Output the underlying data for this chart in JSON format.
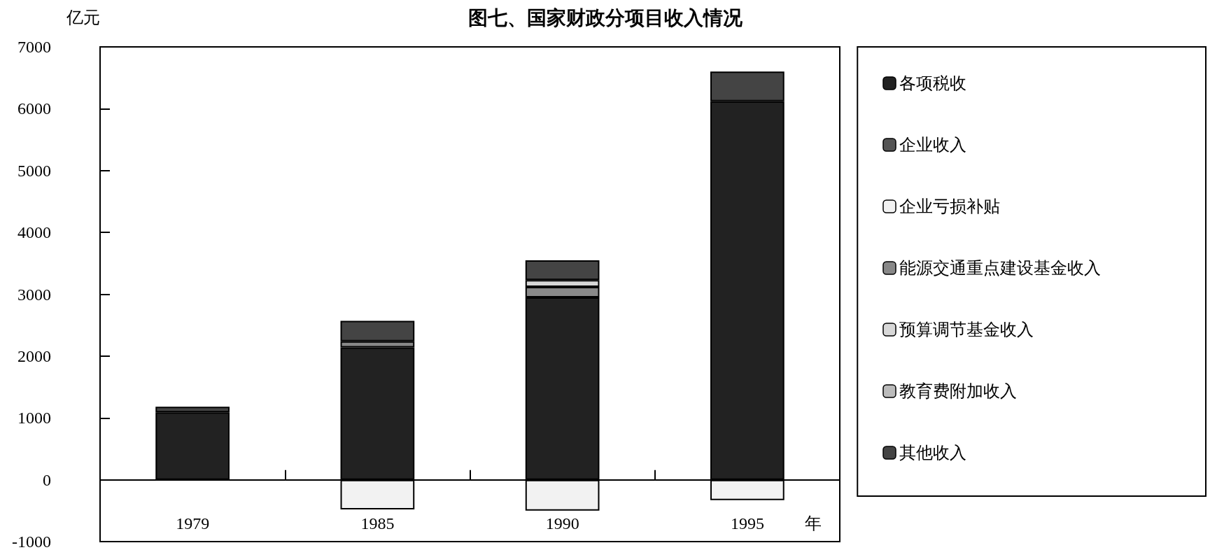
{
  "chart_data": {
    "type": "bar",
    "title": "图七、国家财政分项目收入情况",
    "ylabel": "亿元",
    "xlabel": "年",
    "categories": [
      "1979",
      "1985",
      "1990",
      "1995"
    ],
    "stacked": true,
    "series": [
      {
        "name": "各项税收",
        "color": "#222222",
        "values": [
          1090,
          2140,
          2950,
          6120
        ]
      },
      {
        "name": "企业收入",
        "color": "#555555",
        "values": [
          null,
          null,
          null,
          null
        ]
      },
      {
        "name": "企业亏损补贴",
        "color": "#f2f2f2",
        "values": [
          null,
          -480,
          -500,
          -330
        ]
      },
      {
        "name": "能源交通重点建设基金收入",
        "color": "#888888",
        "values": [
          null,
          100,
          170,
          null
        ]
      },
      {
        "name": "预算调节基金收入",
        "color": "#d8d8d8",
        "values": [
          null,
          null,
          110,
          null
        ]
      },
      {
        "name": "教育费附加收入",
        "color": "#bbbbbb",
        "values": [
          null,
          null,
          null,
          null
        ]
      },
      {
        "name": "其他收入",
        "color": "#444444",
        "values": [
          90,
          330,
          320,
          480
        ]
      }
    ],
    "ylim": [
      -1000,
      7000
    ],
    "yticks": [
      -1000,
      0,
      1000,
      2000,
      3000,
      4000,
      5000,
      6000,
      7000
    ],
    "legend": "right"
  }
}
